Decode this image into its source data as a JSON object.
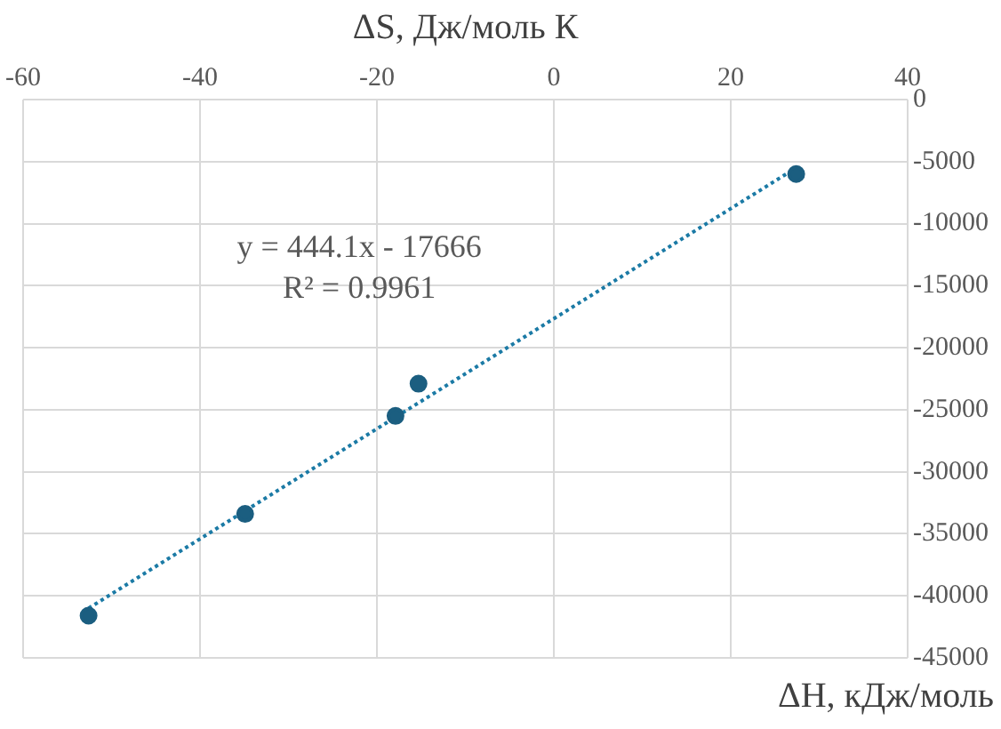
{
  "chart_data": {
    "type": "scatter",
    "xlabel": "ΔS, Дж/моль К",
    "x": [
      -52.6,
      -34.9,
      -17.9,
      -15.3,
      27.4
    ],
    "series": [
      {
        "type": "scatter",
        "color": "#1b5e80",
        "values": [
          -41600,
          -33400,
          -25500,
          -22900,
          -6000
        ]
      },
      {
        "type": "line",
        "color": "#1b7aa5",
        "x": [
          -52.6,
          27.4
        ],
        "values": [
          -41000,
          -5500
        ],
        "line_style": "dotted",
        "marker": "none"
      }
    ],
    "xlim": [
      -60,
      40
    ],
    "xticks": [
      -60,
      -40,
      -20,
      0,
      20,
      40
    ],
    "ylim": [
      -45000,
      0
    ],
    "yticks": [
      -45000,
      -40000,
      -35000,
      -30000,
      -25000,
      -20000,
      -15000,
      -10000,
      -5000,
      0
    ],
    "grid": true,
    "legend": false,
    "marker": "circle",
    "annotations": [
      "y = 444.1x - 17666",
      "R² = 0.9961",
      "ΔH, кДж/моль"
    ]
  }
}
